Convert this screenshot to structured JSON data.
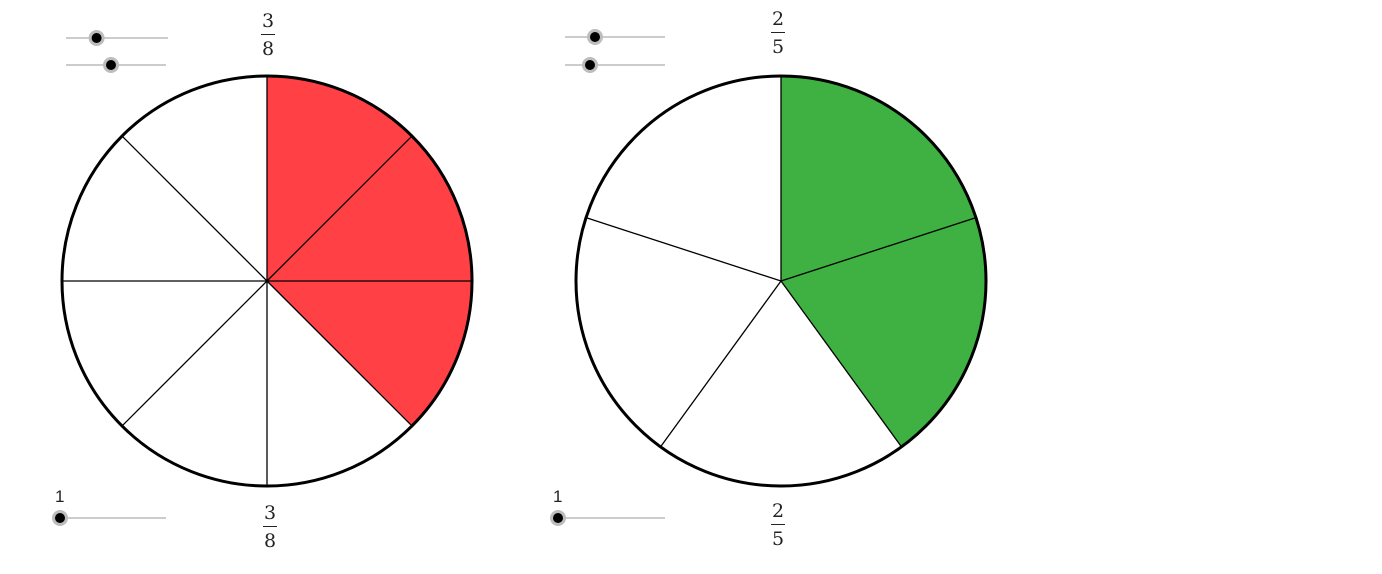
{
  "chart_data": [
    {
      "type": "pie",
      "parts": 8,
      "shaded": 3,
      "fill_color": "#ff4044",
      "fraction_top": {
        "numerator": "3",
        "denominator": "8"
      },
      "fraction_bottom": {
        "numerator": "3",
        "denominator": "8"
      },
      "sliders": [
        {
          "value": 0.3
        },
        {
          "value": 0.45
        },
        {
          "value": 0.0
        }
      ],
      "slider_label": "1"
    },
    {
      "type": "pie",
      "parts": 5,
      "shaded": 2,
      "fill_color": "#3eb142",
      "fraction_top": {
        "numerator": "2",
        "denominator": "5"
      },
      "fraction_bottom": {
        "numerator": "2",
        "denominator": "5"
      },
      "sliders": [
        {
          "value": 0.3
        },
        {
          "value": 0.25
        },
        {
          "value": 0.0
        }
      ],
      "slider_label": "1"
    }
  ]
}
